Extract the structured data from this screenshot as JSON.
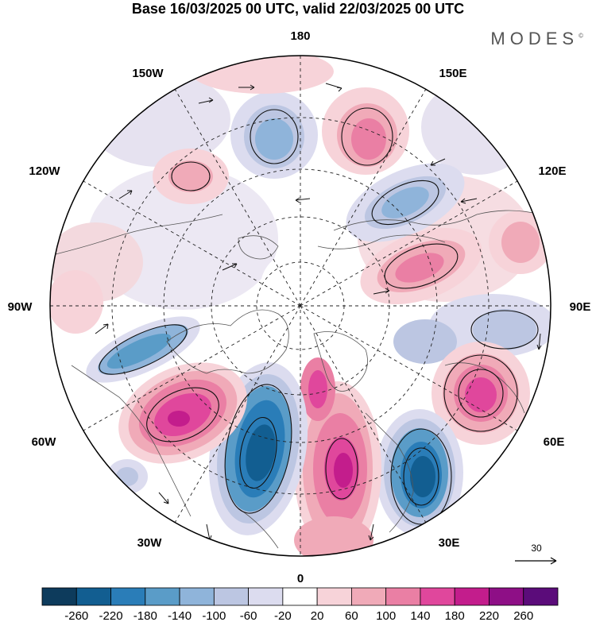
{
  "header": {
    "title": "Base 16/03/2025 00 UTC, valid 22/03/2025 00 UTC",
    "brand": "MODES"
  },
  "map": {
    "projection": "north-polar-stereographic",
    "longitude_labels": {
      "top": "180",
      "bottom": "0",
      "left": "90W",
      "right": "90E",
      "upper_left": "150W",
      "upper_right": "150E",
      "mid_left_upper": "120W",
      "mid_right_upper": "120E",
      "mid_left_lower": "60W",
      "mid_right_lower": "60E",
      "lower_left": "30W",
      "lower_right": "30E"
    },
    "reference_vector": "30"
  },
  "colorbar": {
    "labels": [
      "-260",
      "-220",
      "-180",
      "-140",
      "-100",
      "-60",
      "-20",
      "20",
      "60",
      "100",
      "140",
      "180",
      "220",
      "260"
    ],
    "colors": [
      "#0d3b5c",
      "#125e91",
      "#2a7db8",
      "#5a9cc8",
      "#8fb4da",
      "#bcc6e2",
      "#dcdcef",
      "#ffffff",
      "#f7d3d9",
      "#f0aab8",
      "#ea7fa4",
      "#e0479c",
      "#c31d8c",
      "#8e0f86",
      "#5b0c7a"
    ]
  }
}
